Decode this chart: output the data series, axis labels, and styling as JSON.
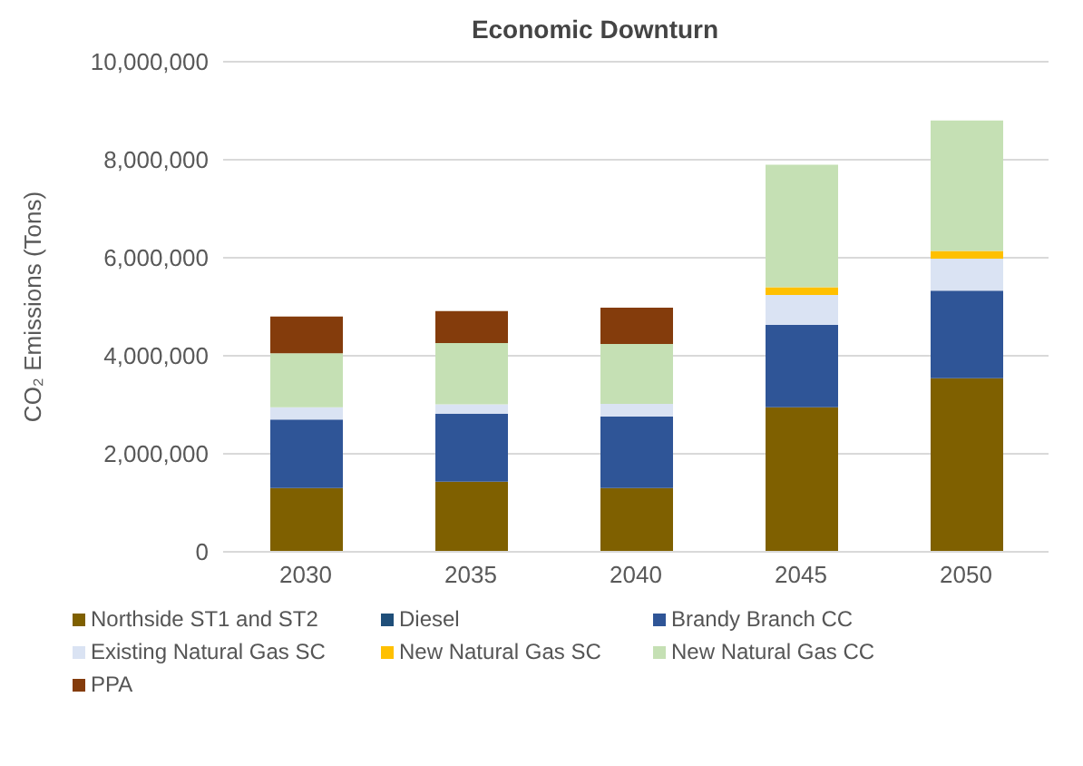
{
  "chart_data": {
    "type": "bar",
    "title": "Economic Downturn",
    "ylabel": "CO₂ Emissions (Tons)",
    "categories": [
      "2030",
      "2035",
      "2040",
      "2045",
      "2050"
    ],
    "stacked": true,
    "series": [
      {
        "name": "Northside ST1 and ST2",
        "color": "#7f6000",
        "values": [
          1300000,
          1430000,
          1300000,
          2950000,
          3540000
        ]
      },
      {
        "name": "Diesel",
        "color": "#1f4e79",
        "values": [
          0,
          0,
          0,
          0,
          0
        ]
      },
      {
        "name": "Brandy Branch CC",
        "color": "#2f5597",
        "values": [
          1400000,
          1390000,
          1460000,
          1680000,
          1790000
        ]
      },
      {
        "name": "Existing Natural Gas SC",
        "color": "#dae3f3",
        "values": [
          250000,
          190000,
          260000,
          610000,
          650000
        ]
      },
      {
        "name": "New Natural Gas SC",
        "color": "#ffc000",
        "values": [
          0,
          0,
          0,
          160000,
          160000
        ]
      },
      {
        "name": "New Natural Gas CC",
        "color": "#c5e0b4",
        "values": [
          1100000,
          1250000,
          1220000,
          2500000,
          2660000
        ]
      },
      {
        "name": "PPA",
        "color": "#843c0c",
        "values": [
          750000,
          650000,
          740000,
          0,
          0
        ]
      }
    ],
    "ylim": [
      0,
      10000000
    ],
    "yticks": [
      {
        "value": 0,
        "label": "0"
      },
      {
        "value": 2000000,
        "label": "2,000,000"
      },
      {
        "value": 4000000,
        "label": "4,000,000"
      },
      {
        "value": 6000000,
        "label": "6,000,000"
      },
      {
        "value": 8000000,
        "label": "8,000,000"
      },
      {
        "value": 10000000,
        "label": "10,000,000"
      }
    ],
    "grid": "y",
    "legend": "bottom"
  }
}
